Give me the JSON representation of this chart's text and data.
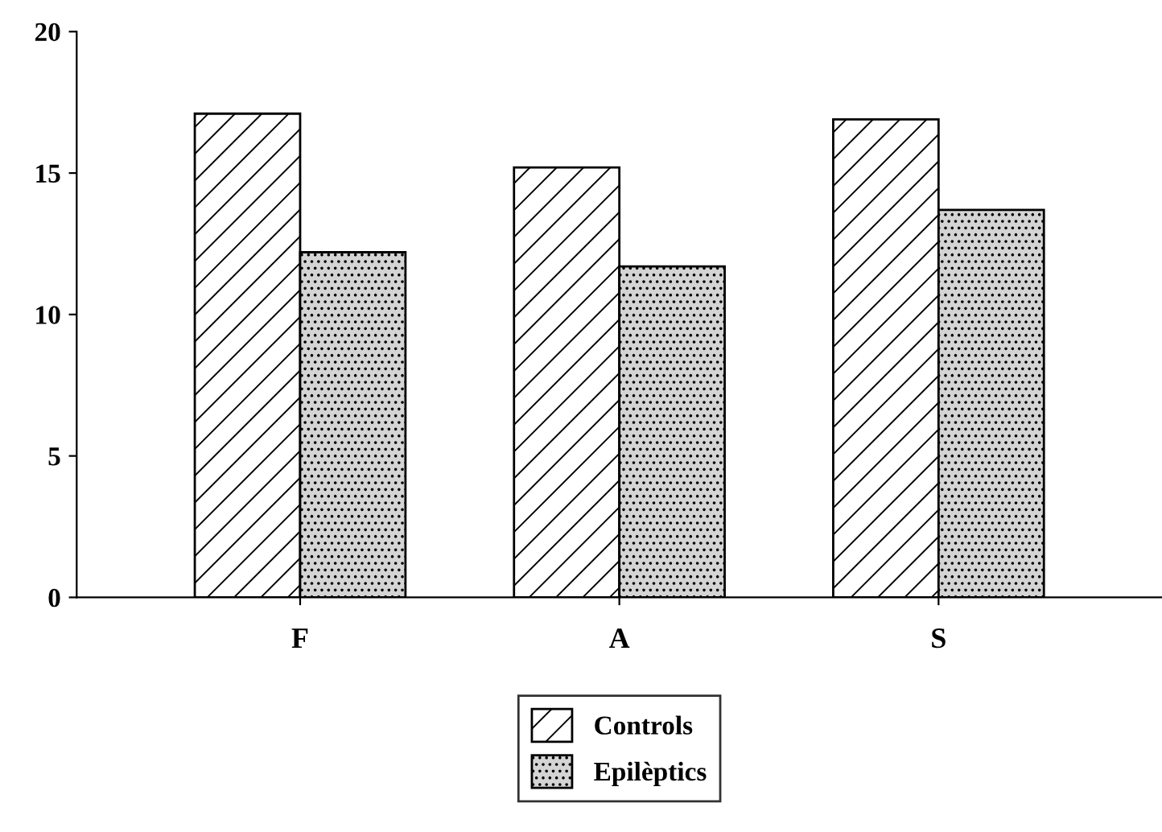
{
  "chart_data": {
    "type": "bar",
    "categories": [
      "F",
      "A",
      "S"
    ],
    "series": [
      {
        "name": "Controls",
        "color": "#ffffff",
        "values": [
          17.1,
          15.2,
          16.9
        ]
      },
      {
        "name": "Epilèptics",
        "color": "#d4d4d4",
        "values": [
          12.2,
          11.7,
          13.7
        ]
      }
    ],
    "ylim": [
      0,
      20
    ],
    "yticks": [
      0,
      5,
      10,
      15,
      20
    ],
    "grid": false,
    "legend": "bottom"
  }
}
